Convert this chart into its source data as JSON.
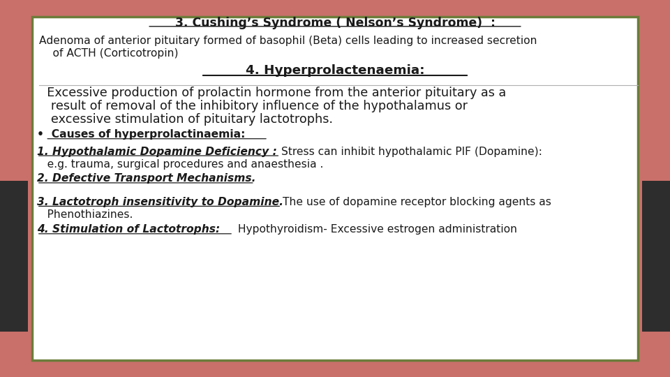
{
  "bg_color": "#c9706a",
  "box_color": "#ffffff",
  "box_border_color": "#6b7c3a",
  "dark_side_color": "#2d2d2d",
  "text_color": "#1a1a1a",
  "title": "3. Cushing’s Syndrome ( Nelson’s Syndrome)  :",
  "line1": "Adenoma of anterior pituitary formed of basophil (Beta) cells leading to increased secretion",
  "line2": "    of ACTH (Corticotropin)",
  "heading2": "4. Hyperprolactenaemia:",
  "para1_line1": "  Excessive production of prolactin hormone from the anterior pituitary as a",
  "para1_line2": "   result of removal of the inhibitory influence of the hypothalamus or",
  "para1_line3": "   excessive stimulation of pituitary lactotrophs.",
  "bullet_text": "•  Causes of hyperprolactinaemia:",
  "item1_bold": "1. Hypothalamic Dopamine Deficiency : ",
  "item1_normal": "Stress can inhibit hypothalamic PIF (Dopamine):",
  "item1_sub": "   e.g. trauma, surgical procedures and anaesthesia .",
  "item2_bold": "2. Defective Transport Mechanisms.",
  "item3_bold": "3. Lactotroph insensitivity to Dopamine.",
  "item3_normal": "The use of dopamine receptor blocking agents as",
  "item3_sub": "   Phenothiazines.",
  "item4_bold": "4. Stimulation of Lactotrophs: ",
  "item4_normal": " Hypothyroidism- Excessive estrogen administration"
}
